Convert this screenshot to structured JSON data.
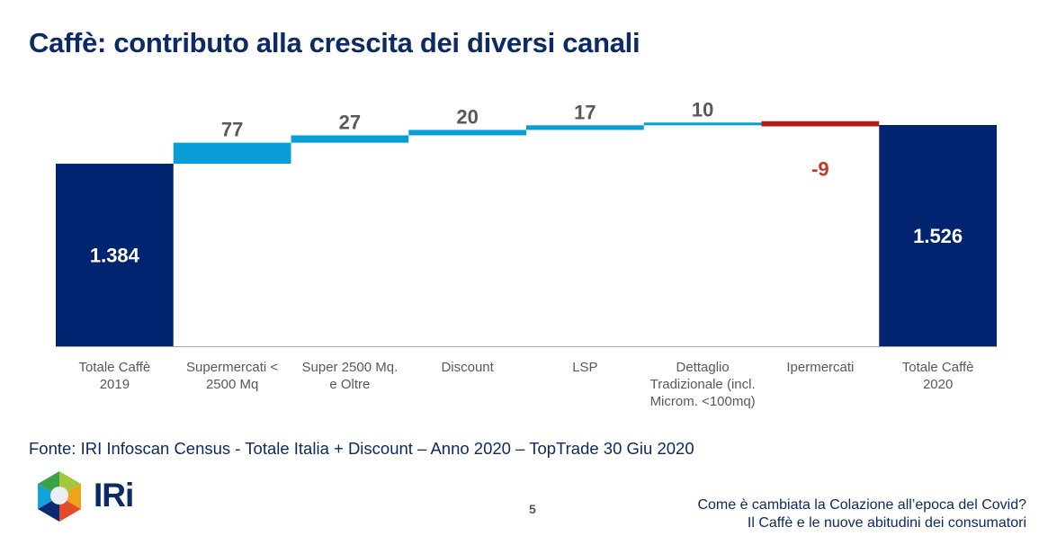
{
  "title": "Caffè: contributo alla crescita dei diversi canali",
  "chart_data": {
    "type": "waterfall",
    "categories": [
      "Totale Caffè 2019",
      "Supermercati < 2500 Mq",
      "Super 2500 Mq. e Oltre",
      "Discount",
      "LSP",
      "Dettaglio Tradizionale (incl. Microm. <100mq)",
      "Ipermercati",
      "Totale Caffè 2020"
    ],
    "category_lines": [
      [
        "Totale Caffè",
        "2019"
      ],
      [
        "Supermercati <",
        "2500 Mq"
      ],
      [
        "Super 2500 Mq.",
        "e Oltre"
      ],
      [
        "Discount"
      ],
      [
        "LSP"
      ],
      [
        "Dettaglio",
        "Tradizionale (incl.",
        "Microm. <100mq)"
      ],
      [
        "Ipermercati"
      ],
      [
        "Totale Caffè",
        "2020"
      ]
    ],
    "values": [
      1384,
      77,
      27,
      20,
      17,
      10,
      -9,
      1526
    ],
    "kinds": [
      "total",
      "delta",
      "delta",
      "delta",
      "delta",
      "delta",
      "delta",
      "total"
    ],
    "data_labels": [
      "1.384",
      "77",
      "27",
      "20",
      "17",
      "10",
      "-9",
      "1.526"
    ],
    "ylim": [
      714,
      1526
    ],
    "colors": {
      "total": "#002470",
      "positive": "#0a9ed8",
      "negative": "#b31b1b",
      "label": "#595959",
      "negative_label": "#c0392b"
    }
  },
  "source": "Fonte: IRI Infoscan Census - Totale Italia + Discount – Anno 2020 – TopTrade 30 Giu 2020",
  "page_number": "5",
  "footer": {
    "line1": "Come è cambiata la Colazione all’epoca del Covid?",
    "line2": "Il Caffè e le nuove abitudini dei consumatori"
  },
  "logo": {
    "text": "IRi"
  }
}
